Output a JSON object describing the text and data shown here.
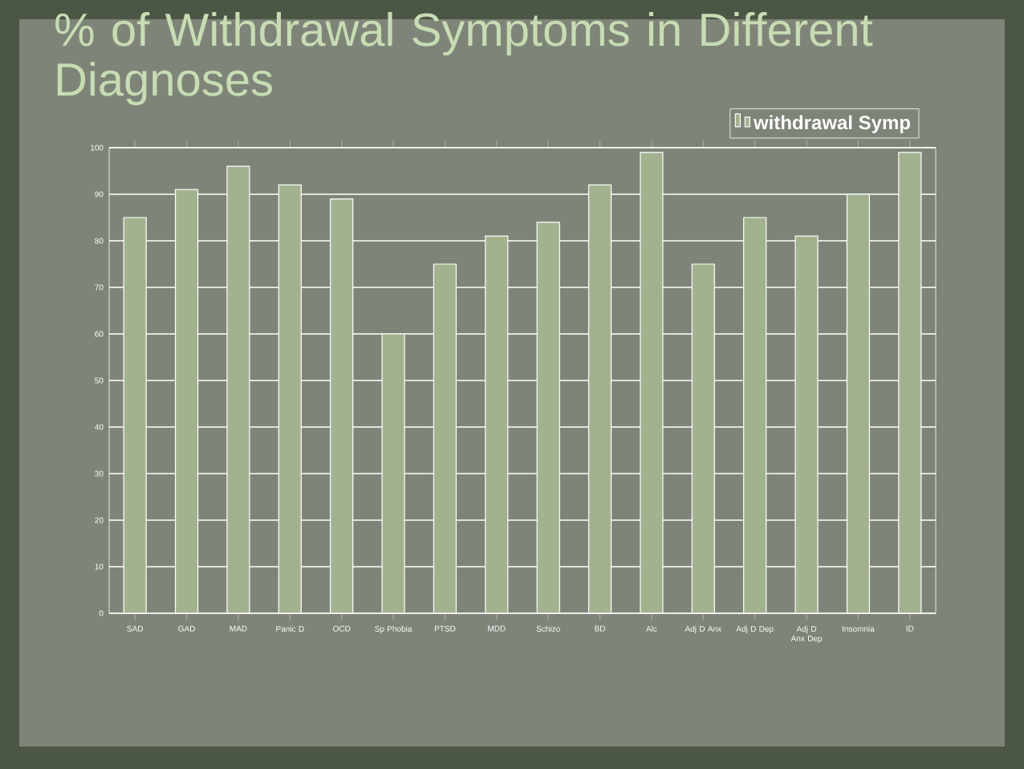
{
  "chart_data": {
    "type": "bar",
    "title": "% of Withdrawal Symptoms in Different Diagnoses",
    "categories": [
      "SAD",
      "GAD",
      "MAD",
      "Panic D",
      "OCD",
      "Sp Phobia",
      "PTSD",
      "MDD",
      "Schizo",
      "BD",
      "Alc",
      "Adj D Anx",
      "Adj D Dep",
      "Adj D Anx Dep",
      "Insomnia",
      "ID"
    ],
    "series": [
      {
        "name": "withdrawal Symp",
        "color": "#a2b28e",
        "values": [
          85,
          91,
          96,
          92,
          89,
          60,
          75,
          81,
          84,
          92,
          99,
          75,
          85,
          81,
          90,
          99
        ]
      }
    ],
    "ylim": [
      0,
      100
    ],
    "yticks": [
      0,
      10,
      20,
      30,
      40,
      50,
      60,
      70,
      80,
      90,
      100
    ],
    "grid": "y",
    "legend": "top right"
  }
}
